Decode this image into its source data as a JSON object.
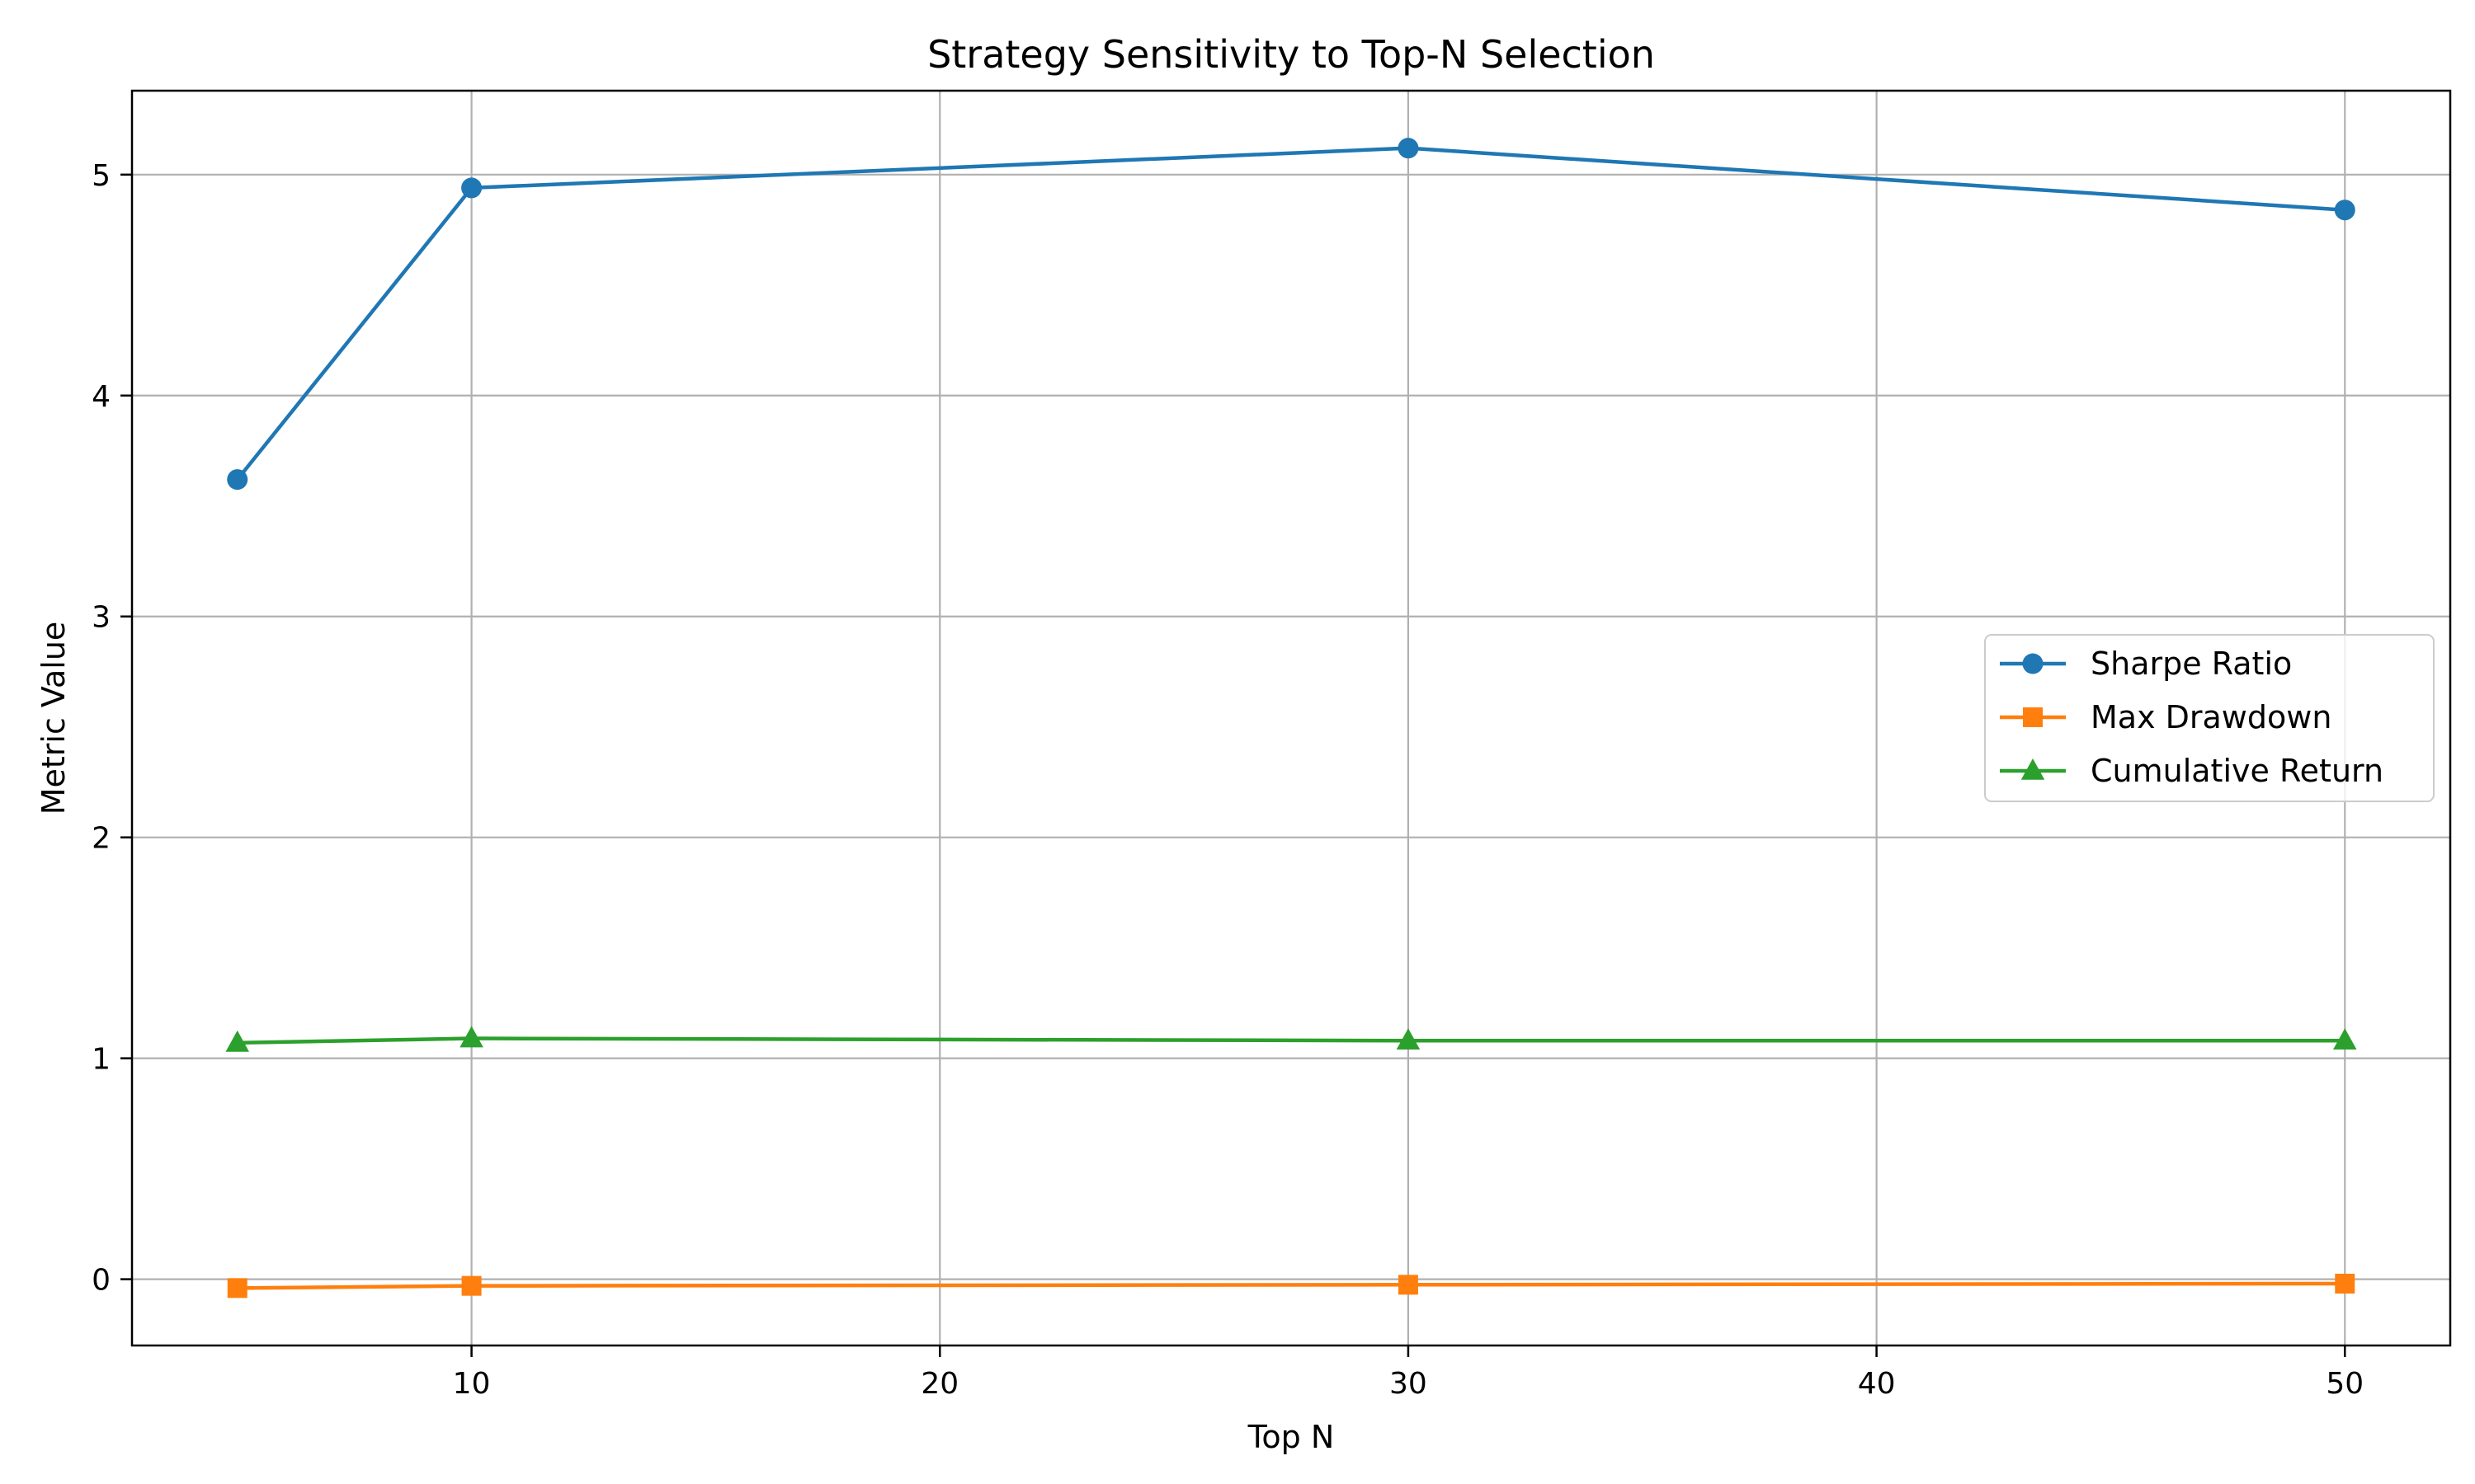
{
  "chart_data": {
    "type": "line",
    "title": "Strategy Sensitivity to Top-N Selection",
    "xlabel": "Top N",
    "ylabel": "Metric Value",
    "x": [
      5,
      10,
      30,
      50
    ],
    "xlim": [
      2.75,
      52.25
    ],
    "ylim": [
      -0.3,
      5.38
    ],
    "xticks": [
      10,
      20,
      30,
      40,
      50
    ],
    "yticks": [
      0,
      1,
      2,
      3,
      4,
      5
    ],
    "grid": true,
    "legend_position": "center-right",
    "series": [
      {
        "name": "Sharpe Ratio",
        "values": [
          3.62,
          4.94,
          5.12,
          4.84
        ],
        "color": "#1f77b4",
        "marker": "circle"
      },
      {
        "name": "Max Drawdown",
        "values": [
          -0.04,
          -0.03,
          -0.025,
          -0.02
        ],
        "color": "#ff7f0e",
        "marker": "square"
      },
      {
        "name": "Cumulative Return",
        "values": [
          1.07,
          1.09,
          1.08,
          1.08
        ],
        "color": "#2ca02c",
        "marker": "triangle"
      }
    ]
  }
}
